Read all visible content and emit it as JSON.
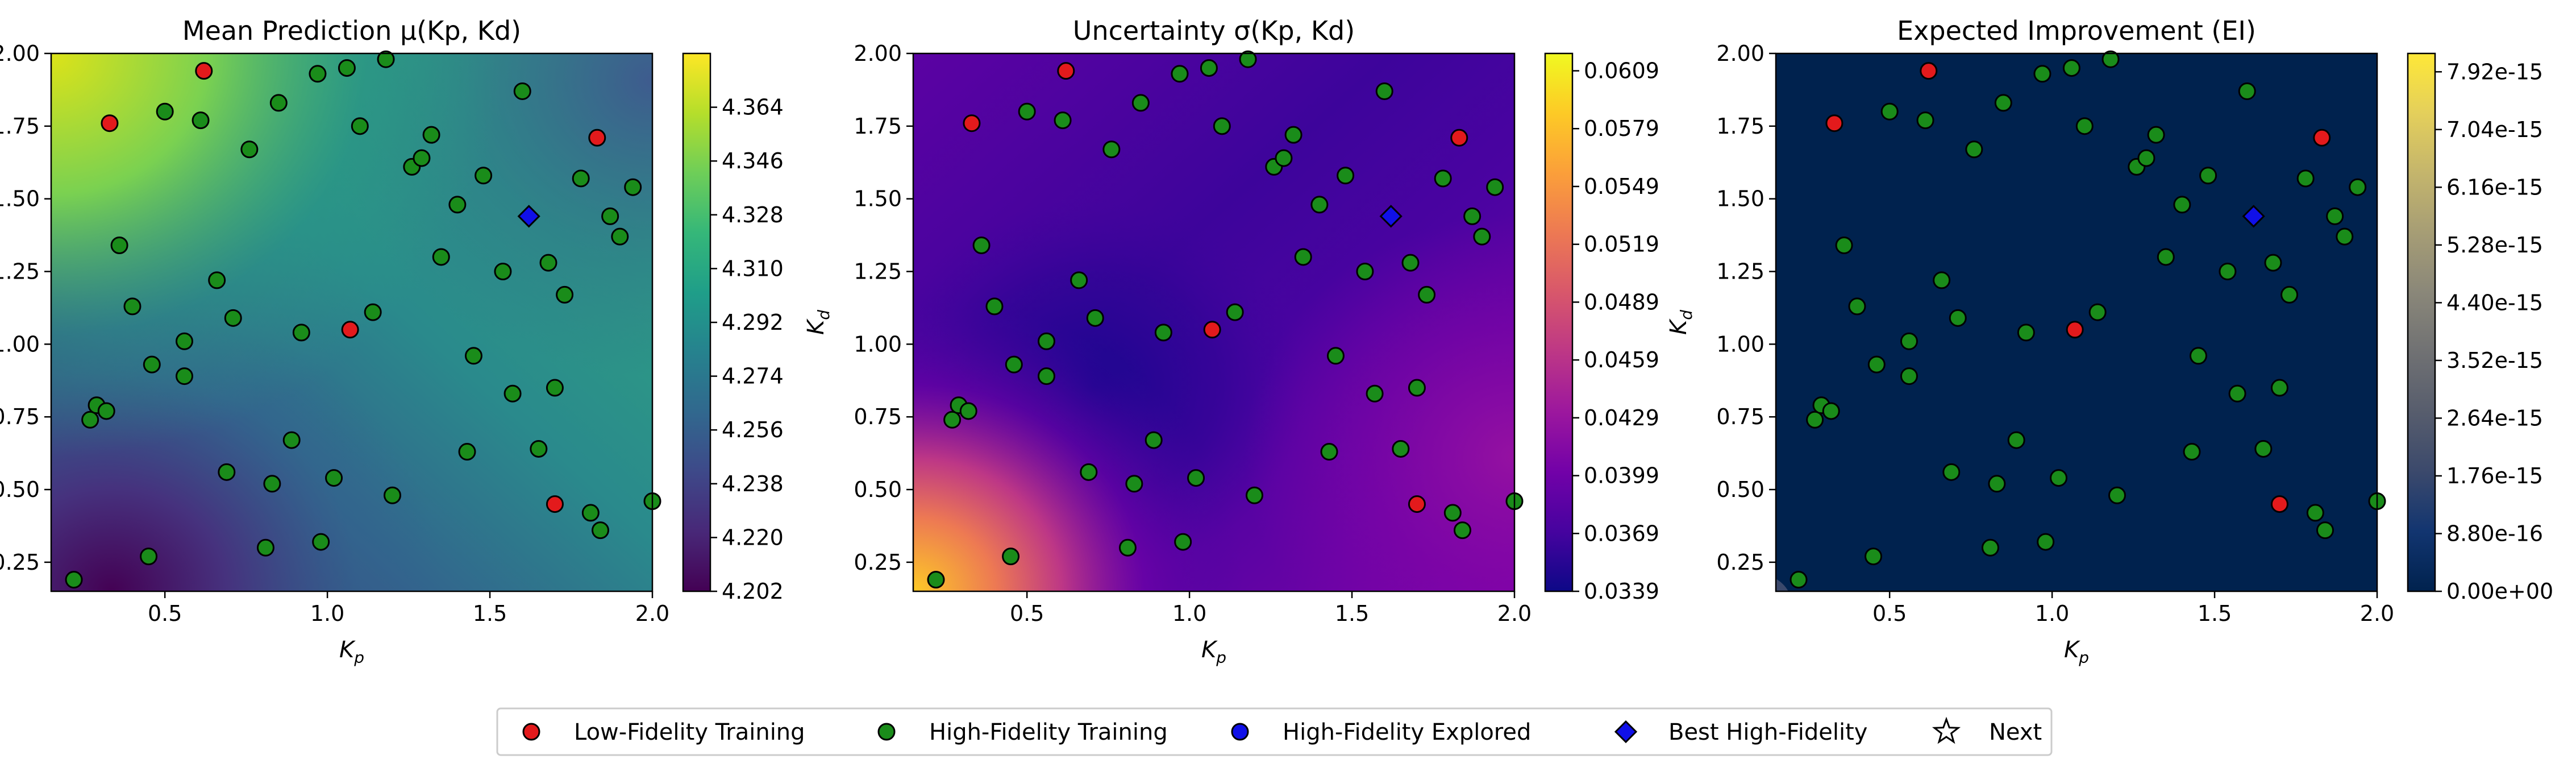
{
  "chart_data": [
    {
      "type": "heatmap",
      "title": "Mean Prediction μ(Kp, Kd)",
      "xlabel": "Kp",
      "ylabel": "Kd",
      "xlim": [
        0.15,
        2.0
      ],
      "ylim": [
        0.15,
        2.0
      ],
      "x_ticks": [
        "0.5",
        "1.0",
        "1.5",
        "2.0"
      ],
      "y_ticks": [
        "0.25",
        "0.50",
        "0.75",
        "1.00",
        "1.25",
        "1.50",
        "1.75",
        "2.00"
      ],
      "colormap": "viridis",
      "colorbar_ticks": [
        "4.202",
        "4.220",
        "4.238",
        "4.256",
        "4.274",
        "4.292",
        "4.310",
        "4.328",
        "4.346",
        "4.364"
      ],
      "colorbar_range": [
        4.202,
        4.382
      ]
    },
    {
      "type": "heatmap",
      "title": "Uncertainty σ(Kp, Kd)",
      "xlabel": "Kp",
      "ylabel": "Kd",
      "xlim": [
        0.15,
        2.0
      ],
      "ylim": [
        0.15,
        2.0
      ],
      "x_ticks": [
        "0.5",
        "1.0",
        "1.5",
        "2.0"
      ],
      "y_ticks": [
        "0.25",
        "0.50",
        "0.75",
        "1.00",
        "1.25",
        "1.50",
        "1.75",
        "2.00"
      ],
      "colormap": "plasma",
      "colorbar_ticks": [
        "0.0339",
        "0.0369",
        "0.0399",
        "0.0429",
        "0.0459",
        "0.0489",
        "0.0519",
        "0.0549",
        "0.0579",
        "0.0609"
      ],
      "colorbar_range": [
        0.0339,
        0.0618
      ]
    },
    {
      "type": "heatmap",
      "title": "Expected Improvement (EI)",
      "xlabel": "Kp",
      "ylabel": "Kd",
      "xlim": [
        0.15,
        2.0
      ],
      "ylim": [
        0.15,
        2.0
      ],
      "x_ticks": [
        "0.5",
        "1.0",
        "1.5",
        "2.0"
      ],
      "y_ticks": [
        "0.25",
        "0.50",
        "0.75",
        "1.00",
        "1.25",
        "1.50",
        "1.75",
        "2.00"
      ],
      "colormap": "cividis",
      "colorbar_ticks": [
        "0.00e+00",
        "8.80e-16",
        "1.76e-15",
        "2.64e-15",
        "3.52e-15",
        "4.40e-15",
        "5.28e-15",
        "6.16e-15",
        "7.04e-15",
        "7.92e-15"
      ],
      "colorbar_range": [
        0,
        8.2e-15
      ]
    }
  ],
  "points": {
    "low_fidelity": [
      [
        0.33,
        1.76
      ],
      [
        0.62,
        1.94
      ],
      [
        1.07,
        1.05
      ],
      [
        1.83,
        1.71
      ],
      [
        1.7,
        0.45
      ]
    ],
    "high_fidelity": [
      [
        0.22,
        0.19
      ],
      [
        0.27,
        0.74
      ],
      [
        0.29,
        0.79
      ],
      [
        0.32,
        0.77
      ],
      [
        0.36,
        1.34
      ],
      [
        0.4,
        1.13
      ],
      [
        0.46,
        0.93
      ],
      [
        0.45,
        0.27
      ],
      [
        0.5,
        1.8
      ],
      [
        0.56,
        0.89
      ],
      [
        0.56,
        1.01
      ],
      [
        0.61,
        1.77
      ],
      [
        0.66,
        1.22
      ],
      [
        0.69,
        0.56
      ],
      [
        0.71,
        1.09
      ],
      [
        0.76,
        1.67
      ],
      [
        0.81,
        0.3
      ],
      [
        0.83,
        0.52
      ],
      [
        0.85,
        1.83
      ],
      [
        0.89,
        0.67
      ],
      [
        0.92,
        1.04
      ],
      [
        0.97,
        1.93
      ],
      [
        0.98,
        0.32
      ],
      [
        1.02,
        0.54
      ],
      [
        1.06,
        1.95
      ],
      [
        1.1,
        1.75
      ],
      [
        1.14,
        1.11
      ],
      [
        1.18,
        1.98
      ],
      [
        1.2,
        0.48
      ],
      [
        1.26,
        1.61
      ],
      [
        1.29,
        1.64
      ],
      [
        1.32,
        1.72
      ],
      [
        1.35,
        1.3
      ],
      [
        1.4,
        1.48
      ],
      [
        1.43,
        0.63
      ],
      [
        1.45,
        0.96
      ],
      [
        1.48,
        1.58
      ],
      [
        1.54,
        1.25
      ],
      [
        1.57,
        0.83
      ],
      [
        1.6,
        1.87
      ],
      [
        1.65,
        0.64
      ],
      [
        1.68,
        1.28
      ],
      [
        1.7,
        0.85
      ],
      [
        1.73,
        1.17
      ],
      [
        1.78,
        1.57
      ],
      [
        1.81,
        0.42
      ],
      [
        1.84,
        0.36
      ],
      [
        1.87,
        1.44
      ],
      [
        1.9,
        1.37
      ],
      [
        1.94,
        1.54
      ],
      [
        2.0,
        0.46
      ]
    ],
    "best_high_fidelity": [
      [
        1.62,
        1.44
      ]
    ]
  },
  "legend": {
    "items": [
      {
        "label": "Low-Fidelity Training",
        "marker": "circle",
        "color": "#e31a1c"
      },
      {
        "label": "High-Fidelity Training",
        "marker": "circle",
        "color": "#1a8c1a"
      },
      {
        "label": "High-Fidelity Explored",
        "marker": "circle",
        "color": "#1010e8"
      },
      {
        "label": "Best High-Fidelity",
        "marker": "diamond",
        "color": "#1010e8"
      },
      {
        "label": "Next",
        "marker": "star",
        "color": "#ffffff"
      }
    ]
  }
}
